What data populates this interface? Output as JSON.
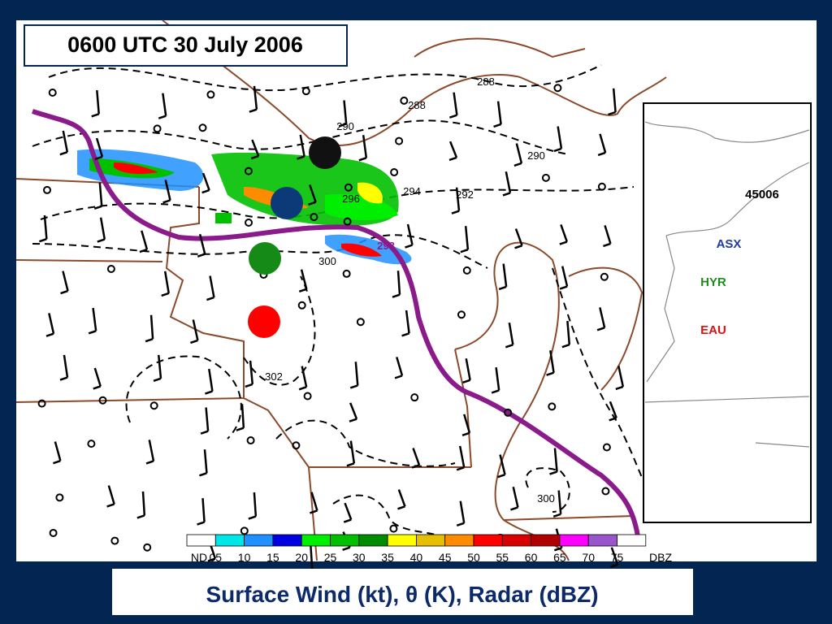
{
  "title": "0600 UTC 30 July 2006",
  "contour_labels": [
    "288",
    "288",
    "290",
    "290",
    "294",
    "292",
    "296",
    "298",
    "300",
    "302",
    "300"
  ],
  "inset": {
    "buoy": "45006",
    "stations": [
      {
        "label": "ASX",
        "color": "#1f3c9c"
      },
      {
        "label": "HYR",
        "color": "#1e8c1e"
      },
      {
        "label": "EAU",
        "color": "#e01010"
      }
    ]
  },
  "colorbar": {
    "labels": [
      "ND",
      "05",
      "10",
      "15",
      "20",
      "25",
      "30",
      "35",
      "40",
      "45",
      "50",
      "55",
      "60",
      "65",
      "70",
      "75"
    ],
    "colors": [
      "#ffffff",
      "#00e5e5",
      "#1e90ff",
      "#0000e0",
      "#00ee00",
      "#00c000",
      "#008c00",
      "#ffff00",
      "#e6c000",
      "#ff8c00",
      "#ff0000",
      "#d80000",
      "#b00000",
      "#ff00ff",
      "#9955cc",
      "#ffffff"
    ],
    "unit": "DBZ"
  },
  "caption": "Surface Wind (kt), θ (K), Radar (dBZ)"
}
